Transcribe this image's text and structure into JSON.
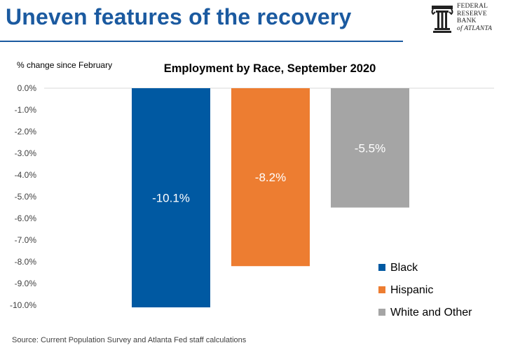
{
  "header": {
    "title": "Uneven features of the recovery",
    "logo_lines": [
      "FEDERAL",
      "RESERVE",
      "BANK",
      "of ATLANTA"
    ]
  },
  "source": "Source:  Current Population Survey and Atlanta Fed staff calculations",
  "colors": {
    "title": "#1b5aa0",
    "Black": "#0059a2",
    "Hispanic": "#ed7d31",
    "White and Other": "#a5a5a5"
  },
  "chart_data": {
    "type": "bar",
    "title": "Employment by Race, September 2020",
    "ylabel": "% change since February",
    "xlabel": "",
    "ylim": [
      -10,
      0
    ],
    "yticks": [
      0,
      -1,
      -2,
      -3,
      -4,
      -5,
      -6,
      -7,
      -8,
      -9,
      -10
    ],
    "ytick_labels": [
      "0.0%",
      "-1.0%",
      "-2.0%",
      "-3.0%",
      "-4.0%",
      "-5.0%",
      "-6.0%",
      "-7.0%",
      "-8.0%",
      "-9.0%",
      "-10.0%"
    ],
    "categories": [
      "Black",
      "Hispanic",
      "White and Other"
    ],
    "values": [
      -10.1,
      -8.2,
      -5.5
    ],
    "data_labels": [
      "-10.1%",
      "-8.2%",
      "-5.5%"
    ],
    "legend": [
      "Black",
      "Hispanic",
      "White and Other"
    ],
    "legend_position": "bottom-right",
    "grid": false
  }
}
